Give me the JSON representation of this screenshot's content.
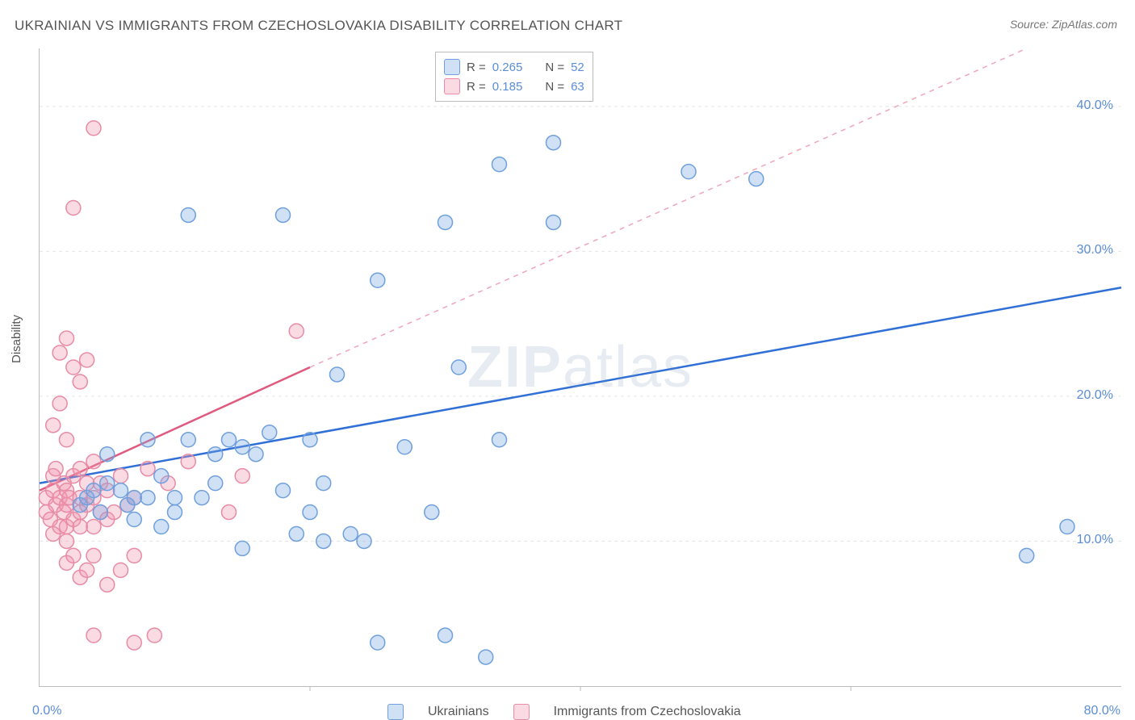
{
  "title": "UKRAINIAN VS IMMIGRANTS FROM CZECHOSLOVAKIA DISABILITY CORRELATION CHART",
  "source": "Source: ZipAtlas.com",
  "ylabel": "Disability",
  "watermark_a": "ZIP",
  "watermark_b": "atlas",
  "chart": {
    "type": "scatter",
    "xlim": [
      0,
      80
    ],
    "ylim": [
      0,
      44
    ],
    "x_ticks": [
      0,
      20,
      40,
      60,
      80
    ],
    "y_ticks": [
      10,
      20,
      30,
      40
    ],
    "x_tick_labels": [
      "0.0%",
      "",
      "",
      "",
      "80.0%"
    ],
    "y_tick_labels": [
      "10.0%",
      "20.0%",
      "30.0%",
      "40.0%"
    ],
    "background": "#ffffff",
    "grid_color": "#e5e5e5",
    "axis_color": "#bbbbbb",
    "tick_label_color": "#5b8dd6",
    "marker_radius": 9,
    "marker_stroke_width": 1.5,
    "series": [
      {
        "name": "Ukrainians",
        "color_fill": "rgba(120,165,225,0.35)",
        "color_stroke": "#6fa0dd",
        "R_label": "R =",
        "R": "0.265",
        "N_label": "N =",
        "N": "52",
        "trend": {
          "x1": 0,
          "y1": 14,
          "x2": 80,
          "y2": 27.5,
          "color": "#2f6fd6",
          "width": 2.5,
          "dashed": false
        },
        "points": [
          [
            3,
            12.5
          ],
          [
            3.5,
            13
          ],
          [
            4,
            13.5
          ],
          [
            4.5,
            12
          ],
          [
            5,
            14
          ],
          [
            5,
            16
          ],
          [
            6,
            13.5
          ],
          [
            6.5,
            12.5
          ],
          [
            7,
            13
          ],
          [
            7,
            11.5
          ],
          [
            8,
            17
          ],
          [
            8,
            13
          ],
          [
            9,
            11
          ],
          [
            9,
            14.5
          ],
          [
            10,
            13
          ],
          [
            10,
            12
          ],
          [
            11,
            17
          ],
          [
            11,
            32.5
          ],
          [
            12,
            13
          ],
          [
            13,
            16
          ],
          [
            13,
            14
          ],
          [
            14,
            17
          ],
          [
            15,
            9.5
          ],
          [
            15,
            16.5
          ],
          [
            16,
            16
          ],
          [
            17,
            17.5
          ],
          [
            18,
            32.5
          ],
          [
            18,
            13.5
          ],
          [
            19,
            10.5
          ],
          [
            20,
            12
          ],
          [
            20,
            17
          ],
          [
            21,
            14
          ],
          [
            21,
            10
          ],
          [
            22,
            21.5
          ],
          [
            23,
            10.5
          ],
          [
            24,
            10
          ],
          [
            25,
            3
          ],
          [
            25,
            28
          ],
          [
            27,
            16.5
          ],
          [
            29,
            12
          ],
          [
            30,
            3.5
          ],
          [
            30,
            32
          ],
          [
            31,
            22
          ],
          [
            33,
            2
          ],
          [
            34,
            36
          ],
          [
            34,
            17
          ],
          [
            38,
            32
          ],
          [
            38,
            37.5
          ],
          [
            48,
            35.5
          ],
          [
            53,
            35
          ],
          [
            73,
            9
          ],
          [
            76,
            11
          ]
        ]
      },
      {
        "name": "Immigrants from Czechoslovakia",
        "color_fill": "rgba(240,150,175,0.35)",
        "color_stroke": "#e88ba5",
        "R_label": "R =",
        "R": "0.185",
        "N_label": "N =",
        "N": "63",
        "trend_solid": {
          "x1": 0,
          "y1": 13.5,
          "x2": 20,
          "y2": 22,
          "color": "#e05a80",
          "width": 2.5
        },
        "trend_dashed": {
          "x1": 20,
          "y1": 22,
          "x2": 73,
          "y2": 44,
          "color": "#f0a5ba",
          "width": 1.5
        },
        "points": [
          [
            0.5,
            12
          ],
          [
            0.5,
            13
          ],
          [
            0.8,
            11.5
          ],
          [
            1,
            13.5
          ],
          [
            1,
            14.5
          ],
          [
            1,
            10.5
          ],
          [
            1,
            18
          ],
          [
            1.2,
            12.5
          ],
          [
            1.2,
            15
          ],
          [
            1.5,
            11
          ],
          [
            1.5,
            13
          ],
          [
            1.5,
            19.5
          ],
          [
            1.5,
            23
          ],
          [
            1.8,
            12
          ],
          [
            1.8,
            14
          ],
          [
            2,
            8.5
          ],
          [
            2,
            10
          ],
          [
            2,
            11
          ],
          [
            2,
            12.5
          ],
          [
            2,
            13.5
          ],
          [
            2,
            17
          ],
          [
            2,
            24
          ],
          [
            2.2,
            13
          ],
          [
            2.5,
            9
          ],
          [
            2.5,
            11.5
          ],
          [
            2.5,
            14.5
          ],
          [
            2.5,
            22
          ],
          [
            2.5,
            33
          ],
          [
            3,
            7.5
          ],
          [
            3,
            11
          ],
          [
            3,
            12
          ],
          [
            3,
            13
          ],
          [
            3,
            15
          ],
          [
            3,
            21
          ],
          [
            3.5,
            8
          ],
          [
            3.5,
            12.5
          ],
          [
            3.5,
            14
          ],
          [
            3.5,
            22.5
          ],
          [
            4,
            3.5
          ],
          [
            4,
            9
          ],
          [
            4,
            11
          ],
          [
            4,
            13
          ],
          [
            4,
            15.5
          ],
          [
            4,
            38.5
          ],
          [
            4.5,
            12
          ],
          [
            4.5,
            14
          ],
          [
            5,
            7
          ],
          [
            5,
            11.5
          ],
          [
            5,
            13.5
          ],
          [
            5.5,
            12
          ],
          [
            6,
            8
          ],
          [
            6,
            14.5
          ],
          [
            6.5,
            12.5
          ],
          [
            7,
            3
          ],
          [
            7,
            9
          ],
          [
            7,
            13
          ],
          [
            8,
            15
          ],
          [
            8.5,
            3.5
          ],
          [
            9.5,
            14
          ],
          [
            11,
            15.5
          ],
          [
            14,
            12
          ],
          [
            15,
            14.5
          ],
          [
            19,
            24.5
          ]
        ]
      }
    ]
  },
  "legend_top": {
    "rows": [
      {
        "swatch_fill": "rgba(120,165,225,0.35)",
        "swatch_stroke": "#6fa0dd"
      },
      {
        "swatch_fill": "rgba(240,150,175,0.35)",
        "swatch_stroke": "#e88ba5"
      }
    ]
  },
  "legend_bottom": [
    {
      "swatch_fill": "rgba(120,165,225,0.35)",
      "swatch_stroke": "#6fa0dd",
      "label": "Ukrainians"
    },
    {
      "swatch_fill": "rgba(240,150,175,0.35)",
      "swatch_stroke": "#e88ba5",
      "label": "Immigrants from Czechoslovakia"
    }
  ]
}
